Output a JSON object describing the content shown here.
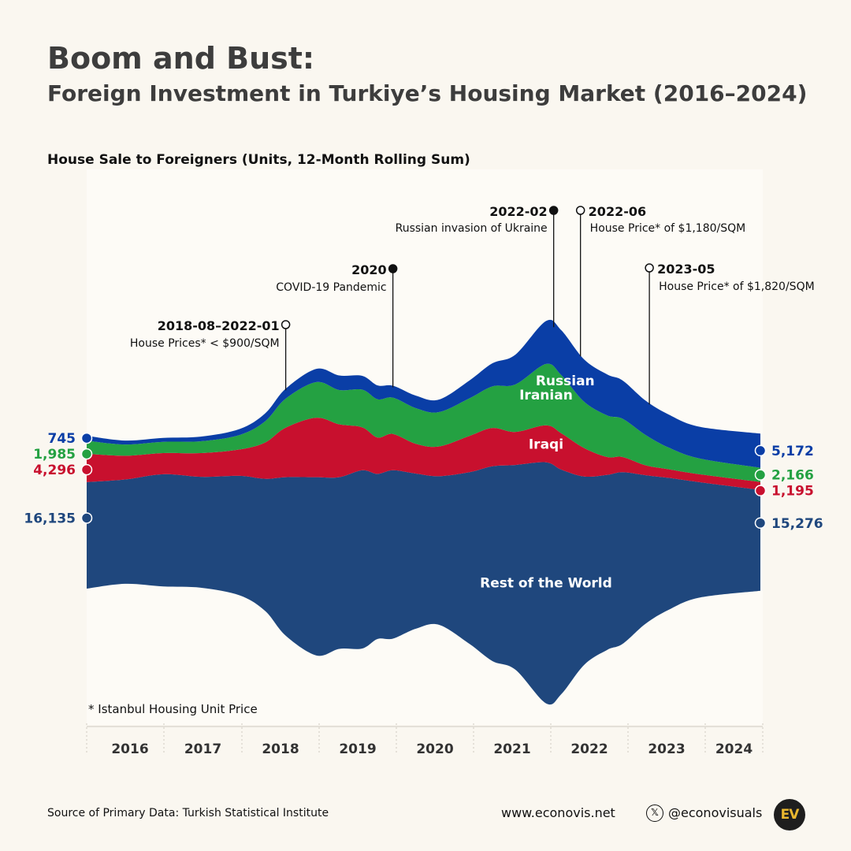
{
  "header": {
    "title": "Boom and Bust:",
    "subtitle": "Foreign Investment in Turkiye’s Housing Market (2016–2024)"
  },
  "chart_data": {
    "type": "area",
    "title": "House Sale to Foreigners (Units, 12-Month Rolling Sum)",
    "layout": "streamgraph",
    "x_axis": {
      "categories": [
        "2016",
        "2017",
        "2018",
        "2019",
        "2020",
        "2021",
        "2022",
        "2023",
        "2024"
      ],
      "range": [
        2016.0,
        2024.8
      ]
    },
    "series_order_bottom_to_top": [
      "Rest of the World",
      "Iraqi",
      "Iranian",
      "Russian"
    ],
    "x": [
      2016.0,
      2016.5,
      2017.0,
      2017.5,
      2018.0,
      2018.33,
      2018.6,
      2019.0,
      2019.3,
      2019.6,
      2019.8,
      2020.0,
      2020.3,
      2020.6,
      2021.0,
      2021.3,
      2021.6,
      2022.0,
      2022.2,
      2022.5,
      2022.8,
      2023.0,
      2023.3,
      2023.6,
      2024.0,
      2024.8
    ],
    "series": [
      {
        "name": "Rest of the World",
        "color": "#1f477d",
        "values": [
          16135,
          15800,
          17000,
          16800,
          18100,
          20000,
          24000,
          27000,
          26000,
          27000,
          25000,
          25500,
          23500,
          22500,
          26000,
          29500,
          31000,
          36500,
          34000,
          28500,
          26500,
          26000,
          22500,
          20000,
          17500,
          15276
        ]
      },
      {
        "name": "Iraqi",
        "color": "#c8102e",
        "values": [
          4296,
          3600,
          3200,
          3600,
          4000,
          5500,
          7500,
          9000,
          8000,
          6500,
          5500,
          5500,
          4500,
          4500,
          5500,
          5800,
          5000,
          5600,
          5500,
          4300,
          2700,
          2300,
          1500,
          1300,
          1200,
          1195
        ]
      },
      {
        "name": "Iranian",
        "color": "#24a142",
        "values": [
          1985,
          1700,
          1700,
          1800,
          2200,
          3200,
          4400,
          5400,
          5200,
          5700,
          5800,
          5500,
          5400,
          5200,
          5700,
          6300,
          7200,
          9300,
          8800,
          7000,
          6300,
          5800,
          4600,
          3300,
          2400,
          2166
        ]
      },
      {
        "name": "Russian",
        "color": "#0a3ea6",
        "values": [
          745,
          600,
          600,
          700,
          900,
          1200,
          1500,
          2000,
          2200,
          2100,
          2100,
          1800,
          1900,
          1900,
          2700,
          3500,
          4500,
          6500,
          6800,
          6400,
          6200,
          5800,
          5200,
          5000,
          4800,
          5172
        ]
      }
    ],
    "start_labels": {
      "Russian": "745",
      "Iranian": "1,985",
      "Iraqi": "4,296",
      "Rest of the World": "16,135"
    },
    "end_labels": {
      "Russian": "5,172",
      "Iranian": "2,166",
      "Iraqi": "1,195",
      "Rest of the World": "15,276"
    },
    "annotations": [
      {
        "date": "2018-08–2022-01",
        "text": "House Prices* < $900/SQM",
        "x": 2018.6,
        "marker": "hollow"
      },
      {
        "date": "2020",
        "text": "COVID-19 Pandemic",
        "x": 2020.0,
        "marker": "filled"
      },
      {
        "date": "2022-02",
        "text": "Russian invasion of Ukraine",
        "x": 2022.1,
        "marker": "filled"
      },
      {
        "date": "2022-06",
        "text": "House Price* of $1,180/SQM",
        "x": 2022.45,
        "marker": "hollow"
      },
      {
        "date": "2023-05",
        "text": "House Price* of $1,820/SQM",
        "x": 2023.35,
        "marker": "hollow"
      }
    ],
    "footnote": "* Istanbul Housing Unit Price",
    "grid": false,
    "legend": "inline"
  },
  "footer": {
    "source": "Source of Primary Data: Turkish Statistical Institute",
    "website": "www.econovis.net",
    "handle": "@econovisuals",
    "x_icon": "𝕏",
    "logo": "EV"
  }
}
